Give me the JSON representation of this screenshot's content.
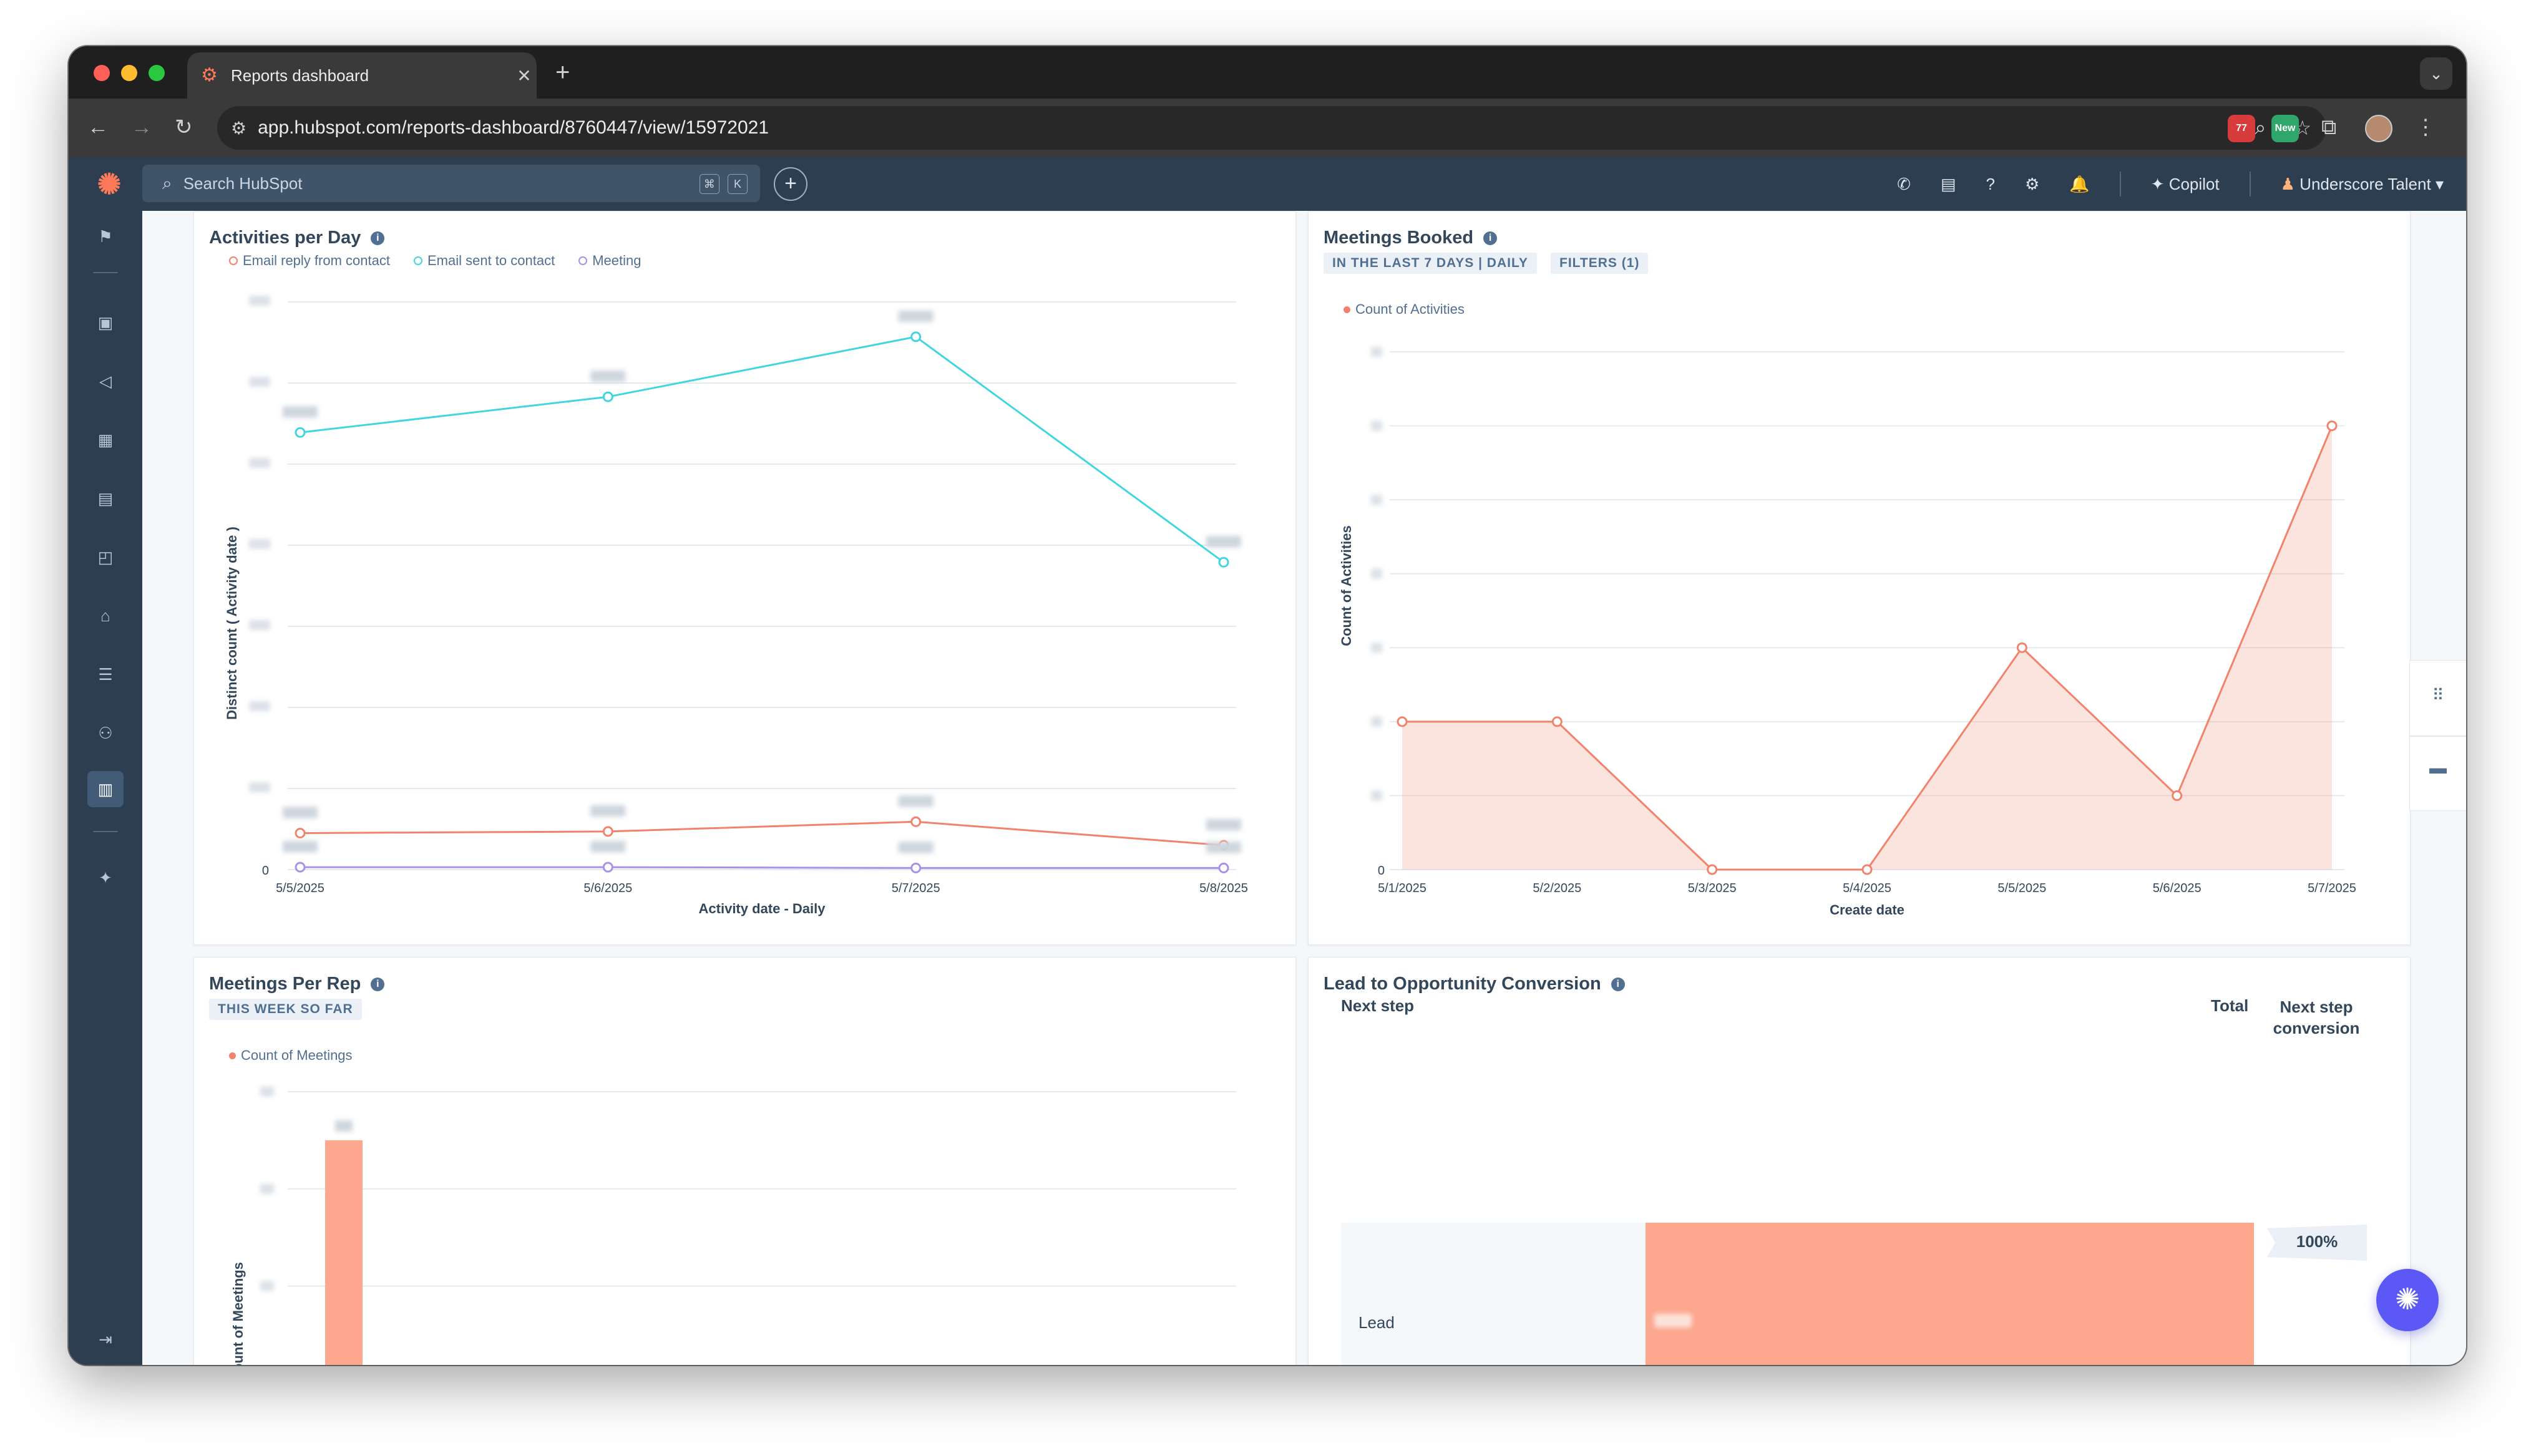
{
  "browser": {
    "tab_title": "Reports dashboard",
    "url": "app.hubspot.com/reports-dashboard/8760447/view/15972021",
    "ext_badge_1": "77",
    "ext_badge_2": "New"
  },
  "hubspot": {
    "search_placeholder": "Search HubSpot",
    "kbd_1": "⌘",
    "kbd_2": "K",
    "copilot_label": "Copilot",
    "account_name": "Underscore Talent"
  },
  "cards": {
    "activities": {
      "title": "Activities per Day",
      "legend": [
        "Email reply from contact",
        "Email sent to contact",
        "Meeting"
      ],
      "ylabel": "Distinct count ( Activity date )",
      "xlabel": "Activity date - Daily",
      "ytick_zero": "0"
    },
    "meetings_booked": {
      "title": "Meetings Booked",
      "pill_1": "IN THE LAST 7 DAYS | DAILY",
      "pill_2": "FILTERS (1)",
      "legend": "Count of Activities",
      "ylabel": "Count of Activities",
      "xlabel": "Create date",
      "ytick_zero": "0"
    },
    "meetings_per_rep": {
      "title": "Meetings Per Rep",
      "pill": "THIS WEEK SO FAR",
      "legend": "Count of Meetings",
      "ylabel": "Count of Meetings"
    },
    "lead_conversion": {
      "title": "Lead to Opportunity Conversion",
      "col_next_step": "Next step",
      "col_total": "Total",
      "col_next_step_conversion_1": "Next step",
      "col_next_step_conversion_2": "conversion",
      "stage_label": "Lead",
      "conversion_value": "100%"
    }
  },
  "chart_data": [
    {
      "type": "line",
      "title": "Activities per Day",
      "xlabel": "Activity date - Daily",
      "ylabel": "Distinct count ( Activity date )",
      "categories": [
        "5/5/2025",
        "5/6/2025",
        "5/7/2025",
        "5/8/2025"
      ],
      "ylim": [
        0,
        7
      ],
      "series": [
        {
          "name": "Email reply from contact",
          "color": "#f2826b",
          "values": [
            0.45,
            0.47,
            0.59,
            0.3
          ]
        },
        {
          "name": "Email sent to contact",
          "color": "#41d5e0",
          "values": [
            5.39,
            5.83,
            6.57,
            3.79
          ]
        },
        {
          "name": "Meeting",
          "color": "#a891e8",
          "values": [
            0.03,
            0.03,
            0.02,
            0.02
          ]
        }
      ],
      "grid": true,
      "legend_position": "top-left"
    },
    {
      "type": "area",
      "title": "Meetings Booked",
      "xlabel": "Create date",
      "ylabel": "Count of Activities",
      "categories": [
        "5/1/2025",
        "5/2/2025",
        "5/3/2025",
        "5/4/2025",
        "5/5/2025",
        "5/6/2025",
        "5/7/2025"
      ],
      "ylim": [
        0,
        7
      ],
      "series": [
        {
          "name": "Count of Activities",
          "color": "#f2826b",
          "values": [
            2,
            2,
            0,
            0,
            3,
            1,
            6
          ]
        }
      ],
      "grid": true,
      "legend_position": "top-left"
    },
    {
      "type": "bar",
      "title": "Meetings Per Rep",
      "ylabel": "Count of Meetings",
      "ylim": [
        0,
        4
      ],
      "series": [
        {
          "name": "Count of Meetings",
          "color": "#fca78e",
          "values": [
            3.5
          ]
        }
      ],
      "grid": true,
      "legend_position": "top-left"
    }
  ]
}
